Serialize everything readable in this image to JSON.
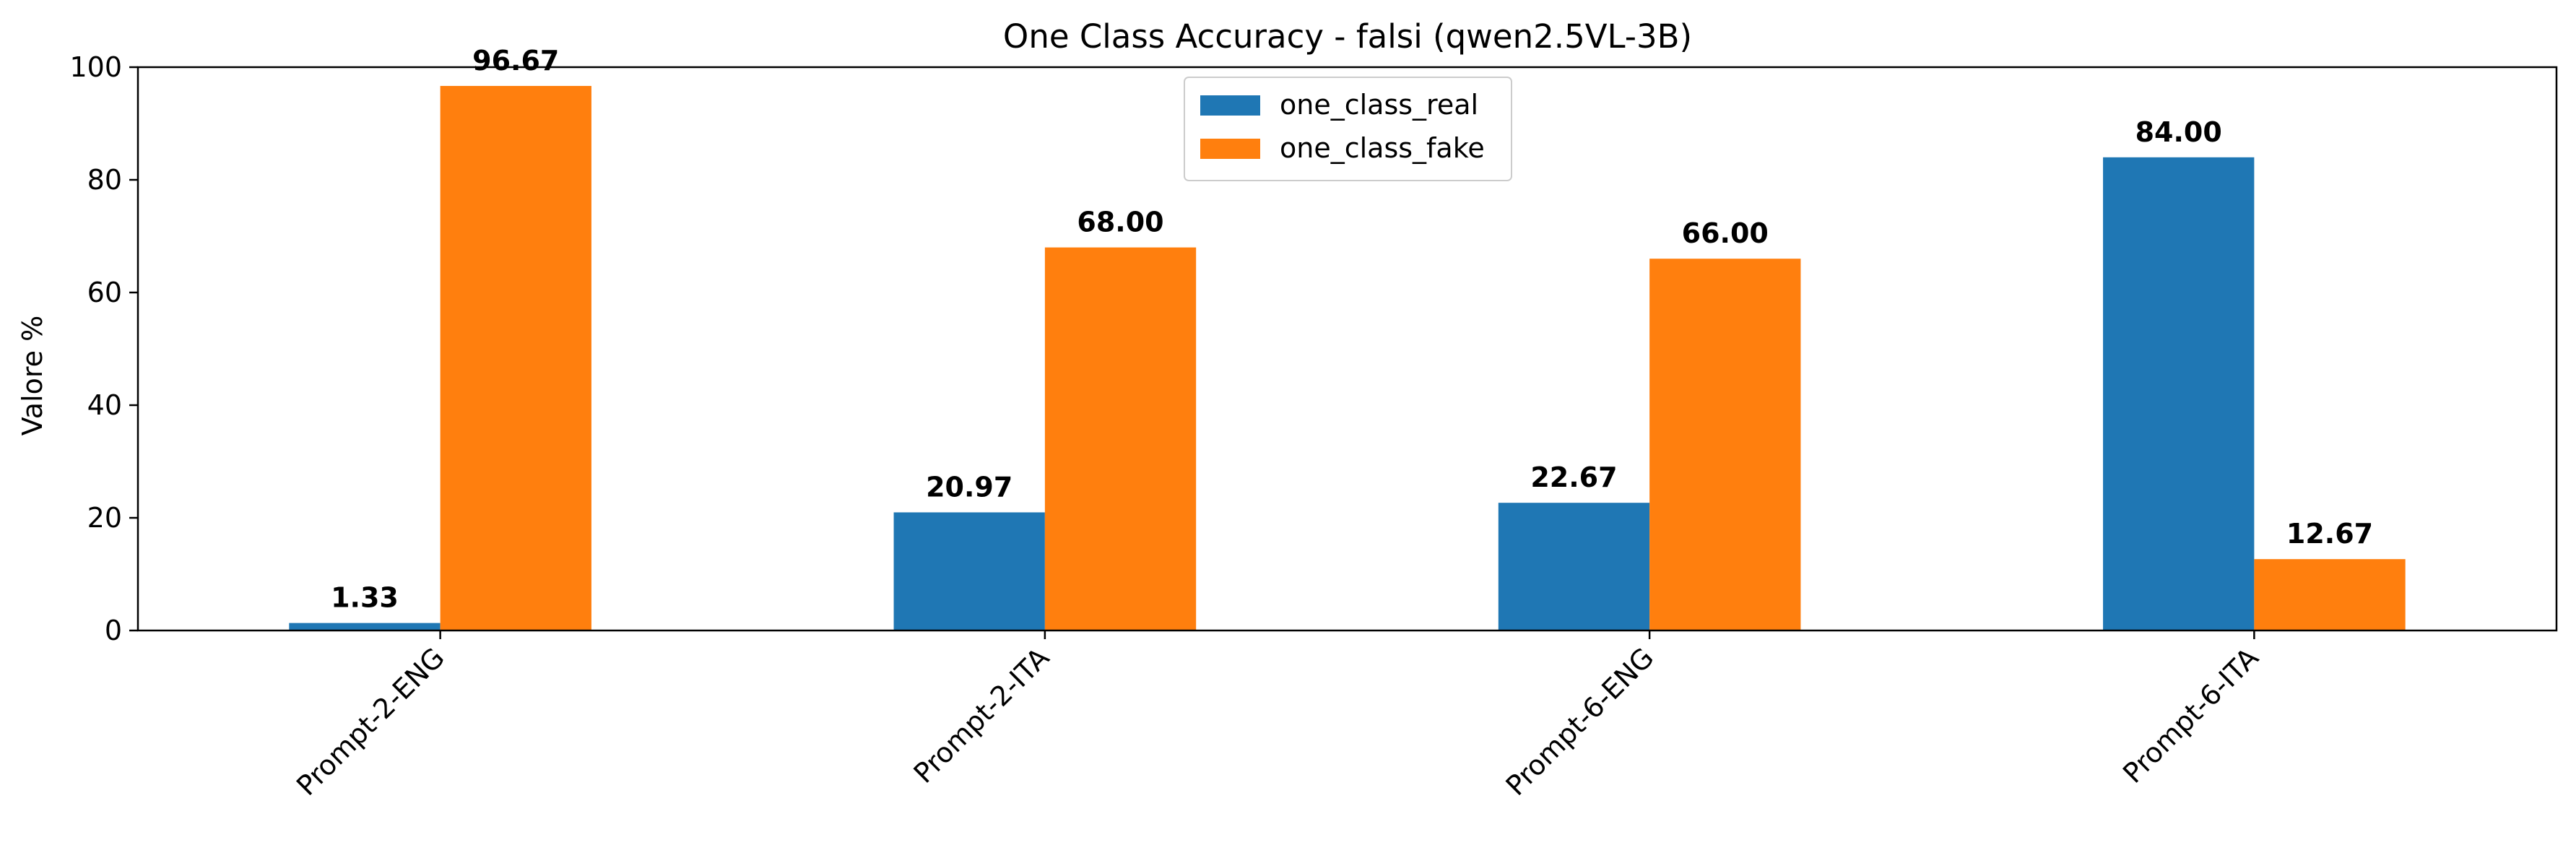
{
  "chart_data": {
    "type": "bar",
    "title": "One Class Accuracy - falsi (qwen2.5VL-3B)",
    "xlabel": "",
    "ylabel": "Valore %",
    "ylim": [
      0,
      100
    ],
    "yticks": [
      0,
      20,
      40,
      60,
      80,
      100
    ],
    "grid": false,
    "legend_position": "top-center",
    "categories": [
      "Prompt-2-ENG",
      "Prompt-2-ITA",
      "Prompt-6-ENG",
      "Prompt-6-ITA"
    ],
    "series": [
      {
        "name": "one_class_real",
        "color": "#1f77b4",
        "values": [
          1.33,
          20.97,
          22.67,
          84.0
        ],
        "labels": [
          "1.33",
          "20.97",
          "22.67",
          "84.00"
        ]
      },
      {
        "name": "one_class_fake",
        "color": "#ff7f0e",
        "values": [
          96.67,
          68.0,
          66.0,
          12.67
        ],
        "labels": [
          "96.67",
          "68.00",
          "66.00",
          "12.67"
        ]
      }
    ]
  }
}
